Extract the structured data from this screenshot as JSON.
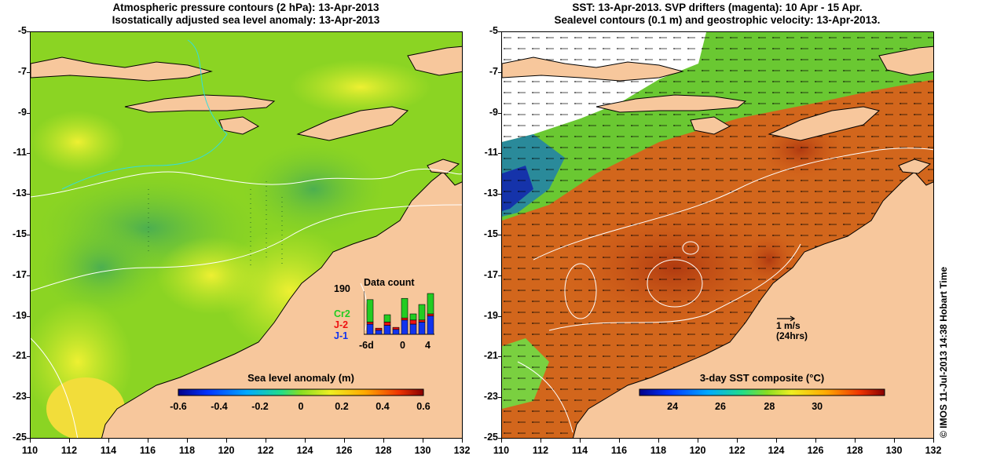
{
  "left": {
    "title_line1": "Atmospheric pressure contours (2 hPa): 13-Apr-2013",
    "title_line2": "Isostatically adjusted sea level anomaly: 13-Apr-2013",
    "colorbar_title": "Sea level anomaly (m)",
    "colorbar_ticks": [
      "-0.6",
      "-0.4",
      "-0.2",
      "0",
      "0.2",
      "0.4",
      "0.6"
    ],
    "inset": {
      "title": "Data count",
      "ymax_label": "190",
      "x_labels": [
        "-6d",
        "0",
        "4"
      ],
      "series": [
        {
          "name": "Cr2",
          "color": "#22cc22"
        },
        {
          "name": "J-2",
          "color": "#ee1111"
        },
        {
          "name": "J-1",
          "color": "#1133ee"
        }
      ],
      "bars": [
        {
          "j1": 0.25,
          "j2": 0.05,
          "cr2": 0.55
        },
        {
          "j1": 0.1,
          "j2": 0.05,
          "cr2": 0.0
        },
        {
          "j1": 0.22,
          "j2": 0.08,
          "cr2": 0.18
        },
        {
          "j1": 0.12,
          "j2": 0.05,
          "cr2": 0.0
        },
        {
          "j1": 0.35,
          "j2": 0.05,
          "cr2": 0.48
        },
        {
          "j1": 0.25,
          "j2": 0.1,
          "cr2": 0.15
        },
        {
          "j1": 0.3,
          "j2": 0.05,
          "cr2": 0.38
        },
        {
          "j1": 0.45,
          "j2": 0.05,
          "cr2": 0.5
        }
      ]
    }
  },
  "right": {
    "title_line1": "SST: 13-Apr-2013. SVP drifters (magenta): 10 Apr - 15 Apr.",
    "title_line2": "Sealevel contours (0.1 m) and geostrophic velocity: 13-Apr-2013.",
    "colorbar_title": "3-day SST composite (°C)",
    "colorbar_ticks": [
      "24",
      "26",
      "28",
      "30"
    ],
    "velocity_label_1": "1 m/s",
    "velocity_label_2": "(24hrs)"
  },
  "axes": {
    "y_ticks": [
      "-5",
      "-7",
      "-9",
      "-11",
      "-13",
      "-15",
      "-17",
      "-19",
      "-21",
      "-23",
      "-25"
    ],
    "x_ticks": [
      "110",
      "112",
      "114",
      "116",
      "118",
      "120",
      "122",
      "124",
      "126",
      "128",
      "130",
      "132"
    ]
  },
  "copyright": "© IMOS 11-Jul-2013 14:38 Hobart Time",
  "colors": {
    "land": "#f7c79c",
    "ocean_green": "#88dd22",
    "ocean_yellow": "#d8ee30",
    "sst_orange": "#d8641a",
    "contour_white": "#ffffff"
  }
}
